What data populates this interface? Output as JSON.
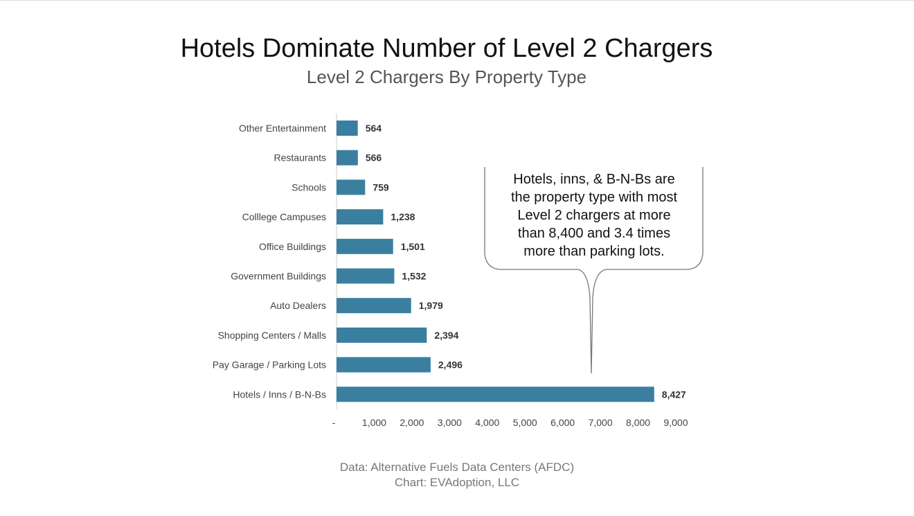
{
  "chart_data": {
    "type": "bar",
    "orientation": "horizontal",
    "title": "Hotels Dominate Number of Level 2 Chargers",
    "subtitle": "Level 2 Chargers By Property Type",
    "categories": [
      "Other Entertainment",
      "Restaurants",
      "Schools",
      "Colllege Campuses",
      "Office Buildings",
      "Government Buildings",
      "Auto Dealers",
      "Shopping Centers / Malls",
      "Pay Garage / Parking Lots",
      "Hotels / Inns / B-N-Bs"
    ],
    "values": [
      564,
      566,
      759,
      1238,
      1501,
      1532,
      1979,
      2394,
      2496,
      8427
    ],
    "data_labels": [
      "564",
      "566",
      "759",
      "1,238",
      "1,501",
      "1,532",
      "1,979",
      "2,394",
      "2,496",
      "8,427"
    ],
    "xlim": [
      0,
      9000
    ],
    "x_ticks": [
      0,
      1000,
      2000,
      3000,
      4000,
      5000,
      6000,
      7000,
      8000,
      9000
    ],
    "x_tick_labels": [
      "-",
      "1,000",
      "2,000",
      "3,000",
      "4,000",
      "5,000",
      "6,000",
      "7,000",
      "8,000",
      "9,000"
    ],
    "grid": false,
    "bar_color": "#3a7fa0",
    "annotation": "Hotels, inns, & B-N-Bs are the property type with most Level 2 chargers at more than 8,400 and 3.4 times more than parking lots.",
    "annotation_lines": [
      "Hotels, inns, & B-N-Bs are",
      "the property type with most",
      "Level 2 chargers at more",
      "than 8,400 and 3.4 times",
      "more than parking lots."
    ]
  },
  "source": {
    "line1": "Data: Alternative Fuels Data Centers (AFDC)",
    "line2": "Chart: EVAdoption, LLC"
  }
}
